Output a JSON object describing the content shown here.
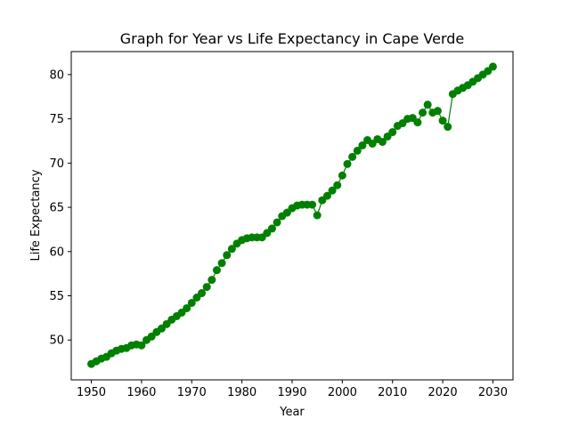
{
  "colors": {
    "series": "#008000",
    "axis": "#000000",
    "background": "#ffffff"
  },
  "chart_data": {
    "type": "line",
    "title": "Graph for Year vs Life Expectancy in Cape Verde",
    "xlabel": "Year",
    "ylabel": "Life Expectancy",
    "xlim": [
      1946,
      2034
    ],
    "ylim": [
      45.5,
      82.6
    ],
    "x_ticks": [
      1950,
      1960,
      1970,
      1980,
      1990,
      2000,
      2010,
      2020,
      2030
    ],
    "y_ticks": [
      50,
      55,
      60,
      65,
      70,
      75,
      80
    ],
    "grid": false,
    "legend": "none",
    "markers": "circle",
    "series": [
      {
        "x": [
          1950,
          1951,
          1952,
          1953,
          1954,
          1955,
          1956,
          1957,
          1958,
          1959,
          1960,
          1961,
          1962,
          1963,
          1964,
          1965,
          1966,
          1967,
          1968,
          1969,
          1970,
          1971,
          1972,
          1973,
          1974,
          1975,
          1976,
          1977,
          1978,
          1979,
          1980,
          1981,
          1982,
          1983,
          1984,
          1985,
          1986,
          1987,
          1988,
          1989,
          1990,
          1991,
          1992,
          1993,
          1994,
          1995,
          1996,
          1997,
          1998,
          1999,
          2000,
          2001,
          2002,
          2003,
          2004,
          2005,
          2006,
          2007,
          2008,
          2009,
          2010,
          2011,
          2012,
          2013,
          2014,
          2015,
          2016,
          2017,
          2018,
          2019,
          2020,
          2021,
          2022,
          2023,
          2024,
          2025,
          2026,
          2027,
          2028,
          2029,
          2030
        ],
        "values": [
          47.3,
          47.6,
          47.9,
          48.1,
          48.5,
          48.8,
          49.0,
          49.1,
          49.4,
          49.5,
          49.4,
          50.0,
          50.4,
          50.9,
          51.3,
          51.8,
          52.3,
          52.7,
          53.1,
          53.6,
          54.2,
          54.8,
          55.3,
          56.0,
          56.8,
          57.9,
          58.7,
          59.6,
          60.3,
          60.9,
          61.3,
          61.5,
          61.6,
          61.6,
          61.6,
          62.1,
          62.6,
          63.3,
          64.0,
          64.4,
          64.9,
          65.2,
          65.3,
          65.3,
          65.3,
          64.1,
          65.8,
          66.3,
          66.9,
          67.5,
          68.6,
          69.9,
          70.7,
          71.4,
          72.0,
          72.6,
          72.2,
          72.7,
          72.4,
          73.0,
          73.5,
          74.2,
          74.5,
          75.0,
          75.1,
          74.6,
          75.7,
          76.6,
          75.7,
          75.9,
          74.8,
          74.1,
          77.8,
          78.2,
          78.5,
          78.8,
          79.2,
          79.6,
          80.0,
          80.4,
          80.9
        ]
      }
    ]
  }
}
